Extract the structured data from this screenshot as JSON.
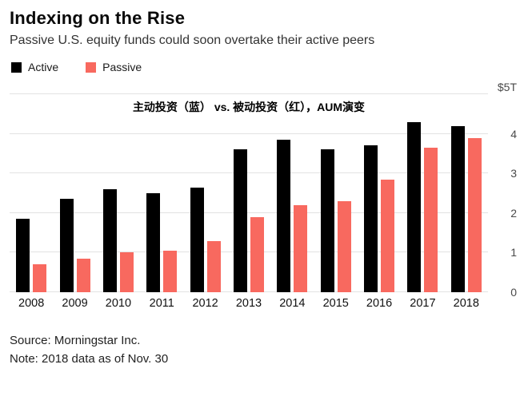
{
  "header": {
    "title": "Indexing on the Rise",
    "subtitle": "Passive U.S. equity funds could soon overtake their active peers"
  },
  "chart_data": {
    "type": "bar",
    "title": "Indexing on the Rise",
    "subtitle": "Passive U.S. equity funds could soon overtake their active peers",
    "annotation": "主动投资（蓝） vs. 被动投资（红），AUM演变",
    "categories": [
      "2008",
      "2009",
      "2010",
      "2011",
      "2012",
      "2013",
      "2014",
      "2015",
      "2016",
      "2017",
      "2018"
    ],
    "series": [
      {
        "name": "Active",
        "color": "#000000",
        "values": [
          1.85,
          2.35,
          2.6,
          2.5,
          2.65,
          3.6,
          3.85,
          3.6,
          3.7,
          4.3,
          4.2
        ]
      },
      {
        "name": "Passive",
        "color": "#f8695f",
        "values": [
          0.7,
          0.85,
          1.0,
          1.05,
          1.3,
          1.9,
          2.2,
          2.3,
          2.85,
          3.65,
          3.9
        ]
      }
    ],
    "ylabel": "",
    "xlabel": "",
    "unit": "trillions USD",
    "ylim": [
      0,
      5
    ],
    "y_ticks": [
      {
        "value": 0,
        "label": "0"
      },
      {
        "value": 1,
        "label": "1"
      },
      {
        "value": 2,
        "label": "2"
      },
      {
        "value": 3,
        "label": "3"
      },
      {
        "value": 4,
        "label": "4"
      },
      {
        "value": 5,
        "label": "$5T"
      }
    ],
    "grid": true,
    "legend_position": "top-left"
  },
  "footer": {
    "source": "Source: Morningstar Inc.",
    "note": "Note: 2018 data as of Nov. 30"
  }
}
